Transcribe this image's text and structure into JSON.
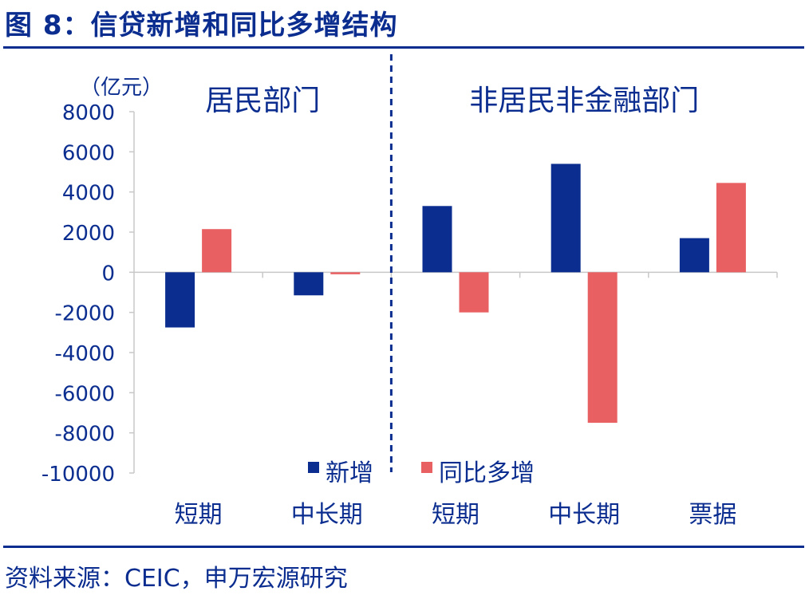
{
  "figure": {
    "title": "图 8：信贷新增和同比多增结构",
    "source": "资料来源：CEIC，申万宏源研究"
  },
  "chart_data": {
    "type": "bar",
    "unit_label": "（亿元）",
    "groups": [
      {
        "label": "居民部门",
        "categories": [
          "短期",
          "中长期"
        ]
      },
      {
        "label": "非居民非金融部门",
        "categories": [
          "短期",
          "中长期",
          "票据"
        ]
      }
    ],
    "categories": [
      "短期",
      "中长期",
      "短期",
      "中长期",
      "票据"
    ],
    "series": [
      {
        "name": "新增",
        "color": "#0a2d8f",
        "values": [
          -2750,
          -1150,
          3300,
          5400,
          1700
        ]
      },
      {
        "name": "同比多增",
        "color": "#e86062",
        "values": [
          2150,
          -100,
          -2000,
          -7500,
          4450
        ]
      }
    ],
    "ylim": [
      -10000,
      8000
    ],
    "yticks": [
      8000,
      6000,
      4000,
      2000,
      0,
      -2000,
      -4000,
      -6000,
      -8000,
      -10000
    ],
    "legend_position": "bottom-center",
    "grid": false
  }
}
